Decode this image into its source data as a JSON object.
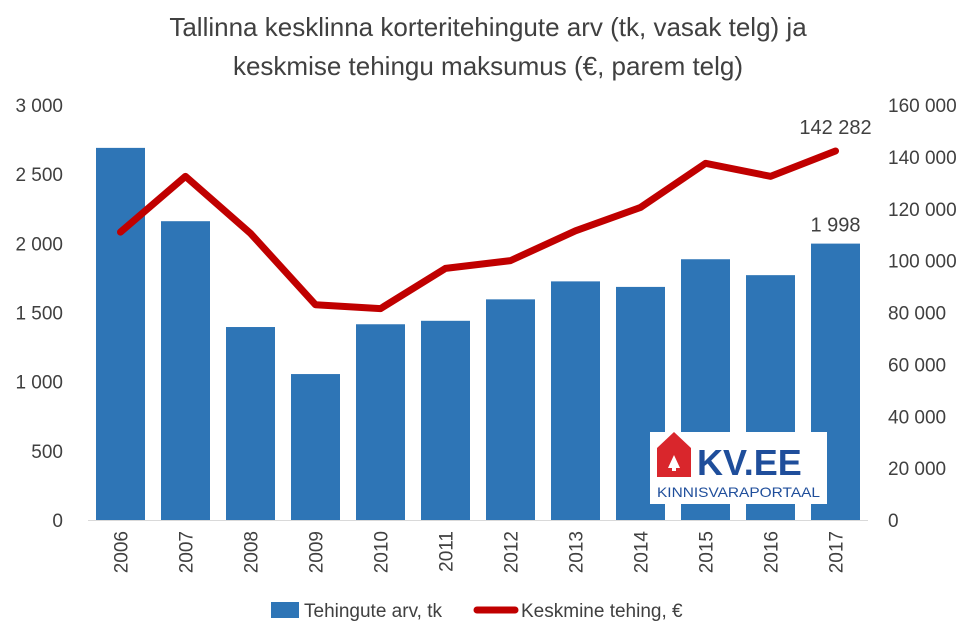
{
  "chart_data": {
    "type": "bar",
    "title_lines": [
      "Tallinna kesklinna korteritehingute arv (tk, vasak telg) ja",
      "keskmise tehingu maksumus (€, parem telg)"
    ],
    "categories": [
      "2006",
      "2007",
      "2008",
      "2009",
      "2010",
      "2011",
      "2012",
      "2013",
      "2014",
      "2015",
      "2016",
      "2017"
    ],
    "series": [
      {
        "name": "Tehingute arv, tk",
        "type": "bar",
        "axis": "left",
        "color": "#2e75b6",
        "values": [
          2690,
          2160,
          1395,
          1055,
          1415,
          1440,
          1595,
          1725,
          1685,
          1885,
          1770,
          1998
        ]
      },
      {
        "name": "Keskmine tehing, €",
        "type": "line",
        "axis": "right",
        "color": "#c00000",
        "values": [
          111000,
          132500,
          110500,
          83000,
          81500,
          97000,
          100000,
          111500,
          120500,
          137500,
          132500,
          142282
        ]
      }
    ],
    "left_axis": {
      "ylim": [
        0,
        3000
      ],
      "ticks": [
        0,
        500,
        1000,
        1500,
        2000,
        2500,
        3000
      ],
      "tick_labels": [
        "0",
        "500",
        "1 000",
        "1 500",
        "2 000",
        "2 500",
        "3 000"
      ]
    },
    "right_axis": {
      "ylim": [
        0,
        160000
      ],
      "ticks": [
        0,
        20000,
        40000,
        60000,
        80000,
        100000,
        120000,
        140000,
        160000
      ],
      "tick_labels": [
        "0",
        "20 000",
        "40 000",
        "60 000",
        "80 000",
        "100 000",
        "120 000",
        "140 000",
        "160 000"
      ]
    },
    "data_labels": [
      {
        "series": 0,
        "index": 11,
        "text": "1 998"
      },
      {
        "series": 1,
        "index": 11,
        "text": "142 282"
      }
    ],
    "legend_position": "bottom",
    "grid": false
  },
  "logo": {
    "main": "KV.EE",
    "sub": "KINNISVARAPORTAAL",
    "red": "#d9262c",
    "blue": "#1f4e9b"
  }
}
